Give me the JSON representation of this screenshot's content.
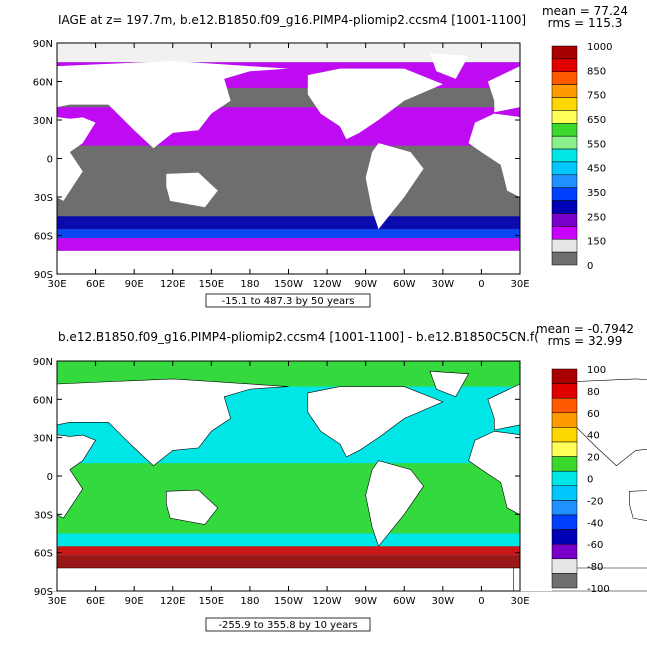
{
  "chart_data": [
    {
      "type": "heatmap",
      "title": "IAGE at z= 197.7m, b.e12.B1850.f09_g16.PIMP4-pliomip2.ccsm4 [1001-1100]",
      "stats": {
        "mean": "mean = 77.24",
        "rms": "rms = 115.3"
      },
      "contour_info": "-15.1 to 487.3 by 50 years",
      "x_ticks": [
        "30E",
        "60E",
        "90E",
        "120E",
        "150E",
        "180",
        "150W",
        "120W",
        "90W",
        "60W",
        "30W",
        "0",
        "30E"
      ],
      "y_ticks": [
        "90N",
        "60N",
        "30N",
        "0",
        "30S",
        "60S",
        "90S"
      ],
      "colorbar": {
        "labels": [
          "1000",
          "850",
          "750",
          "650",
          "550",
          "450",
          "350",
          "250",
          "150",
          "0"
        ],
        "colors": [
          "#a80000",
          "#e00000",
          "#ff5a00",
          "#ff9a00",
          "#ffd700",
          "#ffff5a",
          "#3ad82a",
          "#8af08a",
          "#00e6e6",
          "#00c8ff",
          "#1e90ff",
          "#0040ff",
          "#0000b4",
          "#7800c8",
          "#c800ff",
          "#e6e6e6",
          "#6e6e6e"
        ]
      }
    },
    {
      "type": "heatmap",
      "title": "b.e12.B1850.f09_g16.PIMP4-pliomip2.ccsm4 [1001-1100] - b.e12.B1850C5CN.f(",
      "stats": {
        "mean": "mean = -0.7942",
        "rms": "rms = 32.99"
      },
      "contour_info": "-255.9 to 355.8 by 10 years",
      "x_ticks": [
        "30E",
        "60E",
        "90E",
        "120E",
        "150E",
        "180",
        "150W",
        "120W",
        "90W",
        "60W",
        "30W",
        "0",
        "30E"
      ],
      "y_ticks": [
        "90N",
        "60N",
        "30N",
        "0",
        "30S",
        "60S",
        "90S"
      ],
      "colorbar": {
        "labels": [
          "100",
          "80",
          "60",
          "40",
          "20",
          "0",
          "-20",
          "-40",
          "-60",
          "-80",
          "-100"
        ],
        "colors": [
          "#a80000",
          "#e00000",
          "#ff5a00",
          "#ff9a00",
          "#ffd700",
          "#ffff5a",
          "#3ad82a",
          "#00e6e6",
          "#00c8ff",
          "#1e90ff",
          "#0040ff",
          "#0000b4",
          "#7800c8",
          "#e6e6e6",
          "#6e6e6e"
        ]
      }
    }
  ],
  "colors": {
    "land": "#ffffff",
    "frame": "#000000"
  }
}
